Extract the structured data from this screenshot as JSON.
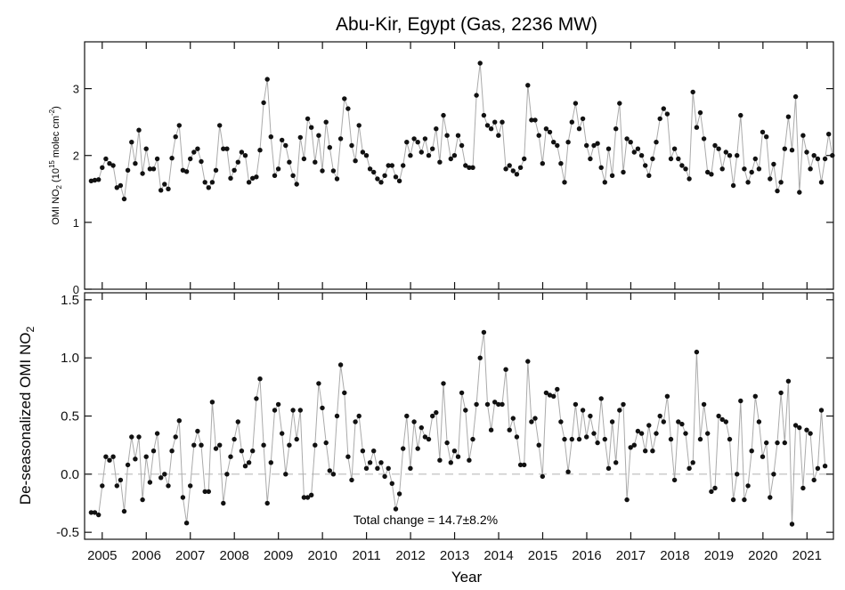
{
  "chart_data": [
    {
      "type": "line",
      "title": "Abu-Kir, Egypt (Gas, 2236 MW)",
      "xlabel": "",
      "ylabel": "OMI NO2 (10¹⁵ molec cm⁻²)",
      "ylim": [
        0,
        3.7
      ],
      "xlim": [
        2004.6,
        2021.6
      ],
      "yticks": [
        "0",
        "1",
        "2",
        "3"
      ],
      "grid": false,
      "marker_color": "#111111",
      "line_color": "#aaaaaa",
      "series": [
        {
          "x_start": 2004.75,
          "x_step": 0.0833,
          "values": [
            1.62,
            1.63,
            1.64,
            1.82,
            1.95,
            1.88,
            1.85,
            1.52,
            1.55,
            1.35,
            1.78,
            2.2,
            1.88,
            2.38,
            1.73,
            2.1,
            1.8,
            1.8,
            1.95,
            1.48,
            1.57,
            1.5,
            1.96,
            2.28,
            2.45,
            1.78,
            1.76,
            1.95,
            2.05,
            2.1,
            1.91,
            1.6,
            1.52,
            1.6,
            1.78,
            2.45,
            2.1,
            2.1,
            1.66,
            1.78,
            1.9,
            2.05,
            2.0,
            1.6,
            1.66,
            1.68,
            2.08,
            2.79,
            3.14,
            2.28,
            1.7,
            1.8,
            2.23,
            2.15,
            1.9,
            1.7,
            1.57,
            2.27,
            1.95,
            2.55,
            2.42,
            1.9,
            2.3,
            1.77,
            2.5,
            2.12,
            1.77,
            1.65,
            2.25,
            2.85,
            2.7,
            2.15,
            1.92,
            2.45,
            2.05,
            2.0,
            1.8,
            1.75,
            1.65,
            1.6,
            1.7,
            1.85,
            1.85,
            1.68,
            1.62,
            1.85,
            2.2,
            2.0,
            2.25,
            2.2,
            2.05,
            2.25,
            2.0,
            2.1,
            2.4,
            1.9,
            2.6,
            2.3,
            1.95,
            2.0,
            2.3,
            2.15,
            1.85,
            1.82,
            1.82,
            2.9,
            3.38,
            2.6,
            2.45,
            2.4,
            2.5,
            2.3,
            2.5,
            1.8,
            1.85,
            1.77,
            1.72,
            1.82,
            1.95,
            3.05,
            2.53,
            2.53,
            2.3,
            1.88,
            2.4,
            2.35,
            2.2,
            2.15,
            1.88,
            1.6,
            2.2,
            2.5,
            2.78,
            2.4,
            2.55,
            2.15,
            1.95,
            2.15,
            2.18,
            1.82,
            1.6,
            2.1,
            1.7,
            2.4,
            2.78,
            1.75,
            2.25,
            2.2,
            2.05,
            2.1,
            2.0,
            1.85,
            1.7,
            1.95,
            2.2,
            2.55,
            2.7,
            2.62,
            1.95,
            2.1,
            1.95,
            1.85,
            1.8,
            1.65,
            2.95,
            2.42,
            2.64,
            2.25,
            1.75,
            1.72,
            2.15,
            2.1,
            1.8,
            2.05,
            2.0,
            1.55,
            2.0,
            2.6,
            1.8,
            1.6,
            1.75,
            1.95,
            1.8,
            2.35,
            2.28,
            1.65,
            1.87,
            1.47,
            1.6,
            2.1,
            2.58,
            2.08,
            2.88,
            1.45,
            2.3,
            2.05,
            1.8,
            2.0,
            1.95,
            1.6,
            1.95,
            2.32,
            2.0
          ]
        }
      ]
    },
    {
      "type": "line",
      "title": "",
      "xlabel": "Year",
      "ylabel": "De-seasonalized OMI NO2",
      "ylim": [
        -0.56,
        1.56
      ],
      "xlim": [
        2004.6,
        2021.6
      ],
      "yticks": [
        "-0.5",
        "0.0",
        "0.5",
        "1.0",
        "1.5"
      ],
      "xtick_labels": [
        "2005",
        "2006",
        "2007",
        "2008",
        "2009",
        "2010",
        "2011",
        "2012",
        "2013",
        "2014",
        "2015",
        "2016",
        "2017",
        "2018",
        "2019",
        "2020",
        "2021"
      ],
      "reference_line": 0.0,
      "annotation": "Total change = 14.7±8.2%",
      "grid": false,
      "marker_color": "#111111",
      "line_color": "#aaaaaa",
      "series": [
        {
          "x_start": 2004.75,
          "x_step": 0.0833,
          "values": [
            -0.33,
            -0.33,
            -0.35,
            -0.1,
            0.15,
            0.12,
            0.15,
            -0.1,
            -0.05,
            -0.32,
            0.08,
            0.32,
            0.13,
            0.32,
            -0.22,
            0.15,
            -0.07,
            0.2,
            0.35,
            -0.03,
            0.0,
            -0.1,
            0.2,
            0.32,
            0.46,
            -0.2,
            -0.42,
            -0.1,
            0.25,
            0.37,
            0.25,
            -0.15,
            -0.15,
            0.62,
            0.22,
            0.25,
            -0.25,
            0.0,
            0.15,
            0.3,
            0.45,
            0.2,
            0.07,
            0.1,
            0.2,
            0.65,
            0.82,
            0.25,
            -0.25,
            0.1,
            0.55,
            0.6,
            0.35,
            0.0,
            0.25,
            0.55,
            0.3,
            0.55,
            -0.2,
            -0.2,
            -0.18,
            0.25,
            0.78,
            0.57,
            0.27,
            0.03,
            0.0,
            0.5,
            0.94,
            0.7,
            0.15,
            -0.05,
            0.45,
            0.5,
            0.2,
            0.05,
            0.1,
            0.2,
            0.05,
            0.1,
            -0.02,
            0.05,
            -0.08,
            -0.3,
            -0.17,
            0.22,
            0.5,
            0.05,
            0.45,
            0.22,
            0.4,
            0.32,
            0.3,
            0.5,
            0.53,
            0.12,
            0.78,
            0.27,
            0.1,
            0.2,
            0.15,
            0.7,
            0.55,
            0.12,
            0.3,
            0.6,
            1.0,
            1.22,
            0.6,
            0.38,
            0.62,
            0.6,
            0.6,
            0.9,
            0.38,
            0.48,
            0.32,
            0.08,
            0.08,
            0.97,
            0.45,
            0.48,
            0.25,
            -0.02,
            0.7,
            0.68,
            0.67,
            0.73,
            0.45,
            0.3,
            0.02,
            0.3,
            0.6,
            0.3,
            0.55,
            0.32,
            0.5,
            0.35,
            0.27,
            0.65,
            0.3,
            0.05,
            0.45,
            0.1,
            0.55,
            0.6,
            -0.22,
            0.23,
            0.25,
            0.37,
            0.35,
            0.2,
            0.42,
            0.2,
            0.35,
            0.5,
            0.45,
            0.67,
            0.3,
            -0.05,
            0.45,
            0.43,
            0.35,
            0.05,
            0.1,
            1.05,
            0.3,
            0.6,
            0.35,
            -0.15,
            -0.12,
            0.5,
            0.47,
            0.45,
            0.3,
            -0.22,
            0.0,
            0.63,
            -0.22,
            -0.1,
            0.2,
            0.67,
            0.45,
            0.15,
            0.27,
            -0.2,
            0.0,
            0.27,
            0.7,
            0.27,
            0.8,
            -0.43,
            0.42,
            0.4,
            -0.12,
            0.38,
            0.35,
            -0.05,
            0.05,
            0.55,
            0.07
          ]
        }
      ]
    }
  ]
}
